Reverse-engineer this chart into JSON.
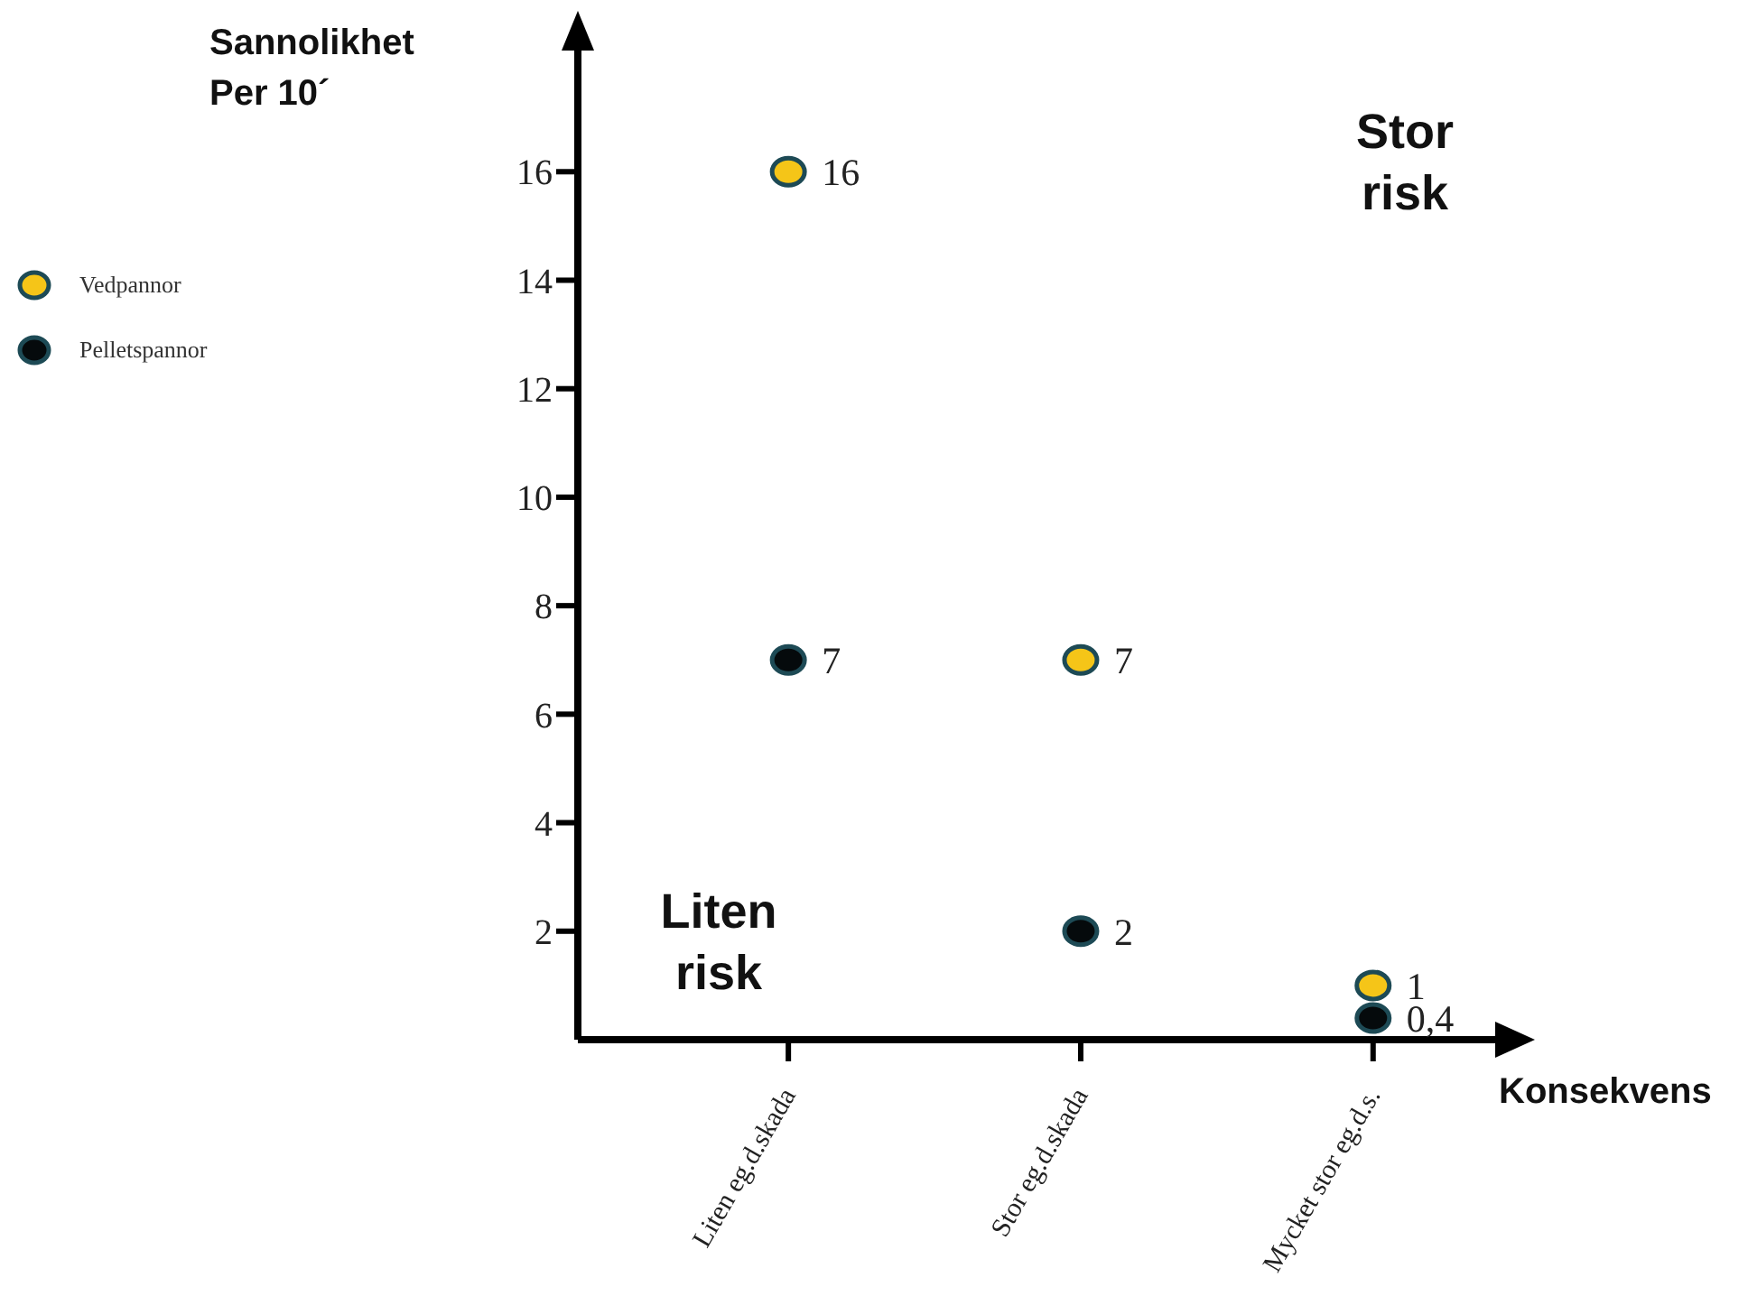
{
  "chart_data": {
    "type": "scatter",
    "ylabel": "Sannolikhet Per 10´",
    "xlabel": "Konsekvens",
    "categories": [
      "Liten eg.d.skada",
      "Stor eg.d.skada",
      "Mycket stor eg.d.s."
    ],
    "series": [
      {
        "name": "Vedpannor",
        "color": "#f5c518",
        "values": [
          16,
          7,
          1
        ],
        "value_labels": [
          "16",
          "7",
          "1"
        ]
      },
      {
        "name": "Pelletspannor",
        "color": "#050a0c",
        "values": [
          7,
          2,
          0.4
        ],
        "value_labels": [
          "7",
          "2",
          "0,4"
        ]
      }
    ],
    "ylim": [
      0,
      18.5
    ],
    "yticks": [
      2,
      4,
      6,
      8,
      10,
      12,
      14,
      16
    ],
    "annotations": [
      "Stor risk",
      "Liten risk"
    ],
    "grid": false,
    "legend": "left",
    "marker": "circle"
  }
}
